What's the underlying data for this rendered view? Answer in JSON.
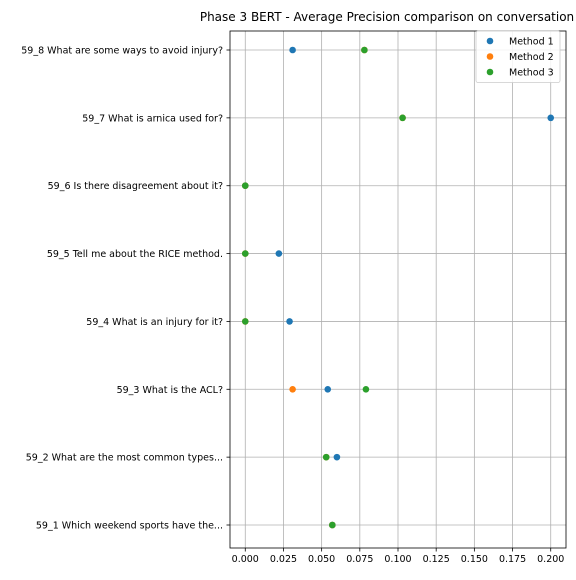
{
  "chart_data": {
    "type": "scatter",
    "title": "Phase 3 BERT - Average Precision comparison on conversation",
    "xlabel": "",
    "ylabel": "",
    "xlim": [
      -0.01,
      0.21
    ],
    "xticks": [
      "0.000",
      "0.025",
      "0.050",
      "0.075",
      "0.100",
      "0.125",
      "0.150",
      "0.175",
      "0.200"
    ],
    "xtick_values": [
      0,
      0.025,
      0.05,
      0.075,
      0.1,
      0.125,
      0.15,
      0.175,
      0.2
    ],
    "grid": true,
    "legend_position": "top-right",
    "categories": [
      "59_1 Which weekend sports have the...",
      "59_2 What are the most common types...",
      "59_3 What is the ACL?",
      "59_4 What is an injury for it?",
      "59_5 Tell me about the RICE method.",
      "59_6 Is there disagreement about it?",
      "59_7 What is arnica used for?",
      "59_8 What are some ways to avoid injury?"
    ],
    "series": [
      {
        "name": "Method 1",
        "color": "#1f77b4",
        "values": [
          0.057,
          0.06,
          0.054,
          0.029,
          0.022,
          0.0,
          0.2,
          0.031
        ]
      },
      {
        "name": "Method 2",
        "color": "#ff7f0e",
        "values": [
          0.057,
          0.053,
          0.031,
          0.0,
          0.0,
          0.0,
          0.103,
          0.078
        ]
      },
      {
        "name": "Method 3",
        "color": "#2ca02c",
        "values": [
          0.057,
          0.053,
          0.079,
          0.0,
          0.0,
          0.0,
          0.103,
          0.078
        ]
      }
    ]
  }
}
